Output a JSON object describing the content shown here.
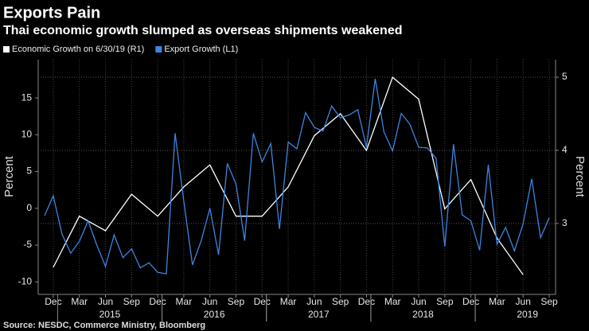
{
  "chart_data": {
    "type": "line",
    "title": "Exports Pain",
    "subtitle": "Thai economic growth slumped as overseas shipments weakened",
    "y_label": "Percent",
    "y2_label": "Percent",
    "source": "Source: NESDC, Commerce Ministry, Bloomberg",
    "x": [
      "2014-11",
      "2014-12",
      "2015-01",
      "2015-02",
      "2015-03",
      "2015-04",
      "2015-05",
      "2015-06",
      "2015-07",
      "2015-08",
      "2015-09",
      "2015-10",
      "2015-11",
      "2015-12",
      "2016-01",
      "2016-02",
      "2016-03",
      "2016-04",
      "2016-05",
      "2016-06",
      "2016-07",
      "2016-08",
      "2016-09",
      "2016-10",
      "2016-11",
      "2016-12",
      "2017-01",
      "2017-02",
      "2017-03",
      "2017-04",
      "2017-05",
      "2017-06",
      "2017-07",
      "2017-08",
      "2017-09",
      "2017-10",
      "2017-11",
      "2017-12",
      "2018-01",
      "2018-02",
      "2018-03",
      "2018-04",
      "2018-05",
      "2018-06",
      "2018-07",
      "2018-08",
      "2018-09",
      "2018-10",
      "2018-11",
      "2018-12",
      "2019-01",
      "2019-02",
      "2019-03",
      "2019-04",
      "2019-05",
      "2019-06",
      "2019-07",
      "2019-08",
      "2019-09"
    ],
    "xticks": [
      {
        "value": "2014-12",
        "label": "Dec"
      },
      {
        "value": "2015-03",
        "label": "Mar"
      },
      {
        "value": "2015-06",
        "label": "Jun"
      },
      {
        "value": "2015-09",
        "label": "Sep"
      },
      {
        "value": "2015-12",
        "label": "Dec"
      },
      {
        "value": "2016-03",
        "label": "Mar"
      },
      {
        "value": "2016-06",
        "label": "Jun"
      },
      {
        "value": "2016-09",
        "label": "Sep"
      },
      {
        "value": "2016-12",
        "label": "Dec"
      },
      {
        "value": "2017-03",
        "label": "Mar"
      },
      {
        "value": "2017-06",
        "label": "Jun"
      },
      {
        "value": "2017-09",
        "label": "Sep"
      },
      {
        "value": "2017-12",
        "label": "Dec"
      },
      {
        "value": "2018-03",
        "label": "Mar"
      },
      {
        "value": "2018-06",
        "label": "Jun"
      },
      {
        "value": "2018-09",
        "label": "Sep"
      },
      {
        "value": "2018-12",
        "label": "Dec"
      },
      {
        "value": "2019-03",
        "label": "Mar"
      },
      {
        "value": "2019-06",
        "label": "Jun"
      },
      {
        "value": "2019-09",
        "label": "Sep"
      }
    ],
    "year_labels": [
      2015,
      2016,
      2017,
      2018,
      2019
    ],
    "ylim": [
      -11.7,
      20.2
    ],
    "yticks": [
      -10,
      -5,
      0,
      5,
      10,
      15
    ],
    "y2lim": [
      2.03,
      5.24
    ],
    "y2ticks": [
      3,
      4,
      5
    ],
    "grid": true,
    "series": [
      {
        "name": "Economic Growth on 6/30/19 (R1)",
        "color": "#ffffff",
        "axis": "y2",
        "x": [
          "2014-12",
          "2015-03",
          "2015-06",
          "2015-09",
          "2015-12",
          "2016-03",
          "2016-06",
          "2016-09",
          "2016-12",
          "2017-03",
          "2017-06",
          "2017-09",
          "2017-12",
          "2018-03",
          "2018-06",
          "2018-09",
          "2018-12",
          "2019-03",
          "2019-06"
        ],
        "values": [
          2.4,
          3.1,
          2.9,
          3.4,
          3.1,
          3.5,
          3.8,
          3.1,
          3.1,
          3.5,
          4.2,
          4.5,
          4.0,
          5.0,
          4.7,
          3.2,
          3.6,
          2.8,
          2.3
        ]
      },
      {
        "name": "Export Growth (L1)",
        "color": "#3d85e0",
        "values": [
          -1,
          1.7,
          -3.5,
          -6.1,
          -4.5,
          -1.7,
          -5,
          -7.9,
          -3.6,
          -6.7,
          -5.5,
          -8.1,
          -7.4,
          -8.7,
          -8.9,
          10.2,
          1,
          -7.7,
          -4.4,
          0,
          -6.3,
          6.1,
          3.3,
          -4.4,
          10.2,
          6.3,
          8.8,
          -2.8,
          9,
          8.1,
          13,
          11,
          10.5,
          13.9,
          12.3,
          12.7,
          13.4,
          8.3,
          17.6,
          10.4,
          7.8,
          12.9,
          11.4,
          8.3,
          8.2,
          6.8,
          -5.2,
          8.7,
          -0.9,
          -1.7,
          -5.7,
          5.9,
          -4.9,
          -2.6,
          -5.8,
          -2.1,
          4,
          -4,
          -1.3
        ]
      }
    ]
  }
}
